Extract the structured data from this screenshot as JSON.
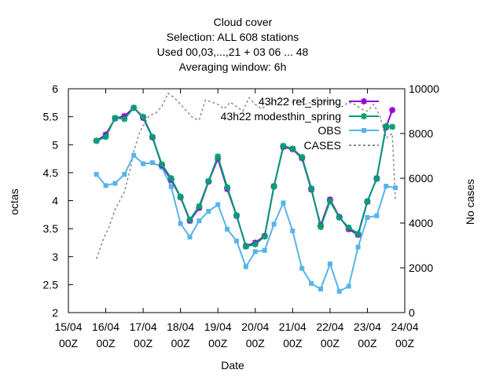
{
  "chart_data": {
    "type": "line",
    "title": [
      "Cloud cover",
      "Selection: ALL    608 stations",
      "Used  00,03,...,21  + 03 06 ... 48",
      "Averaging window:  6h"
    ],
    "xlabel": "Date",
    "ylabel": "octas",
    "y2label": "No cases",
    "xlim": [
      0,
      216
    ],
    "ylim": [
      2,
      6
    ],
    "y2lim": [
      0,
      10000
    ],
    "x_ticks": [
      {
        "x": 0,
        "l1": "15/04",
        "l2": "00Z"
      },
      {
        "x": 24,
        "l1": "16/04",
        "l2": "00Z"
      },
      {
        "x": 48,
        "l1": "17/04",
        "l2": "00Z"
      },
      {
        "x": 72,
        "l1": "18/04",
        "l2": "00Z"
      },
      {
        "x": 96,
        "l1": "19/04",
        "l2": "00Z"
      },
      {
        "x": 120,
        "l1": "20/04",
        "l2": "00Z"
      },
      {
        "x": 144,
        "l1": "21/04",
        "l2": "00Z"
      },
      {
        "x": 168,
        "l1": "22/04",
        "l2": "00Z"
      },
      {
        "x": 192,
        "l1": "23/04",
        "l2": "00Z"
      },
      {
        "x": 216,
        "l1": "24/04",
        "l2": "00Z"
      }
    ],
    "y_ticks": [
      "2",
      "2.5",
      "3",
      "3.5",
      "4",
      "4.5",
      "5",
      "5.5",
      "6"
    ],
    "y2_ticks": [
      "0",
      "2000",
      "4000",
      "6000",
      "8000",
      "10000"
    ],
    "grid": false,
    "legend_position": "top-right",
    "series": [
      {
        "name": "43h22 ref_spring",
        "axis": "y",
        "color": "#9400d3",
        "marker": "cross",
        "style": "solid",
        "x": [
          18,
          24,
          30,
          36,
          42,
          48,
          54,
          60,
          66,
          72,
          78,
          84,
          90,
          96,
          102,
          108,
          114,
          120,
          126,
          132,
          138,
          144,
          150,
          156,
          162,
          168,
          174,
          180,
          186,
          192,
          198,
          204,
          208
        ],
        "y": [
          5.07,
          5.18,
          5.47,
          5.51,
          5.66,
          5.48,
          5.13,
          4.63,
          4.37,
          4.06,
          3.64,
          3.87,
          4.34,
          4.75,
          4.21,
          3.73,
          3.19,
          3.25,
          3.37,
          4.26,
          4.96,
          4.92,
          4.76,
          4.2,
          3.56,
          4.02,
          3.71,
          3.49,
          3.39,
          3.98,
          4.4,
          5.31,
          5.62
        ]
      },
      {
        "name": "43h22 modesthin_spring",
        "axis": "y",
        "color": "#009e73",
        "marker": "star",
        "style": "solid",
        "x": [
          18,
          24,
          30,
          36,
          42,
          48,
          54,
          60,
          66,
          72,
          78,
          84,
          90,
          96,
          102,
          108,
          114,
          120,
          126,
          132,
          138,
          144,
          150,
          156,
          162,
          168,
          174,
          180,
          186,
          192,
          198,
          204,
          208
        ],
        "y": [
          5.07,
          5.14,
          5.48,
          5.46,
          5.66,
          5.5,
          5.14,
          4.65,
          4.4,
          4.07,
          3.66,
          3.9,
          4.35,
          4.79,
          4.24,
          3.74,
          3.18,
          3.22,
          3.36,
          4.25,
          4.98,
          4.93,
          4.78,
          4.22,
          3.53,
          3.99,
          3.7,
          3.52,
          3.41,
          3.99,
          4.39,
          5.33,
          5.32
        ]
      },
      {
        "name": "OBS",
        "axis": "y",
        "color": "#56b4e9",
        "marker": "square",
        "style": "solid",
        "x": [
          18,
          24,
          30,
          36,
          42,
          48,
          54,
          60,
          66,
          72,
          78,
          84,
          90,
          96,
          102,
          108,
          114,
          120,
          126,
          132,
          138,
          144,
          150,
          156,
          162,
          168,
          174,
          180,
          186,
          192,
          198,
          204,
          210
        ],
        "y": [
          4.47,
          4.27,
          4.31,
          4.47,
          4.81,
          4.66,
          4.68,
          4.6,
          4.25,
          3.59,
          3.35,
          3.64,
          3.81,
          3.93,
          3.49,
          3.28,
          2.82,
          3.09,
          3.11,
          3.58,
          3.96,
          3.46,
          2.79,
          2.52,
          2.42,
          2.87,
          2.38,
          2.47,
          3.17,
          3.7,
          3.73,
          4.26,
          4.23
        ]
      },
      {
        "name": "CASES",
        "axis": "y2",
        "color": "#8c8c8c",
        "marker": "none",
        "style": "dashed",
        "x": [
          18,
          22,
          26,
          30,
          36,
          40,
          42,
          46,
          52,
          56,
          60,
          64,
          68,
          72,
          76,
          80,
          84,
          88,
          92,
          96,
          100,
          104,
          108,
          112,
          116,
          120,
          124,
          128,
          132,
          136,
          140,
          144,
          148,
          152,
          156,
          160,
          164,
          168,
          172,
          176,
          180,
          184,
          188,
          192,
          196,
          200,
          204,
          208,
          210
        ],
        "y": [
          2400,
          3200,
          3800,
          4600,
          5400,
          6500,
          7200,
          8100,
          8800,
          8900,
          9200,
          9800,
          9600,
          9300,
          9000,
          8700,
          8600,
          9500,
          9400,
          9300,
          9100,
          9400,
          9200,
          9000,
          9600,
          9300,
          9100,
          9300,
          9400,
          9600,
          9500,
          9400,
          9500,
          9300,
          9400,
          9600,
          9400,
          9500,
          9300,
          9200,
          9400,
          9300,
          9100,
          9000,
          9300,
          8800,
          7800,
          8000,
          5000
        ]
      }
    ]
  }
}
